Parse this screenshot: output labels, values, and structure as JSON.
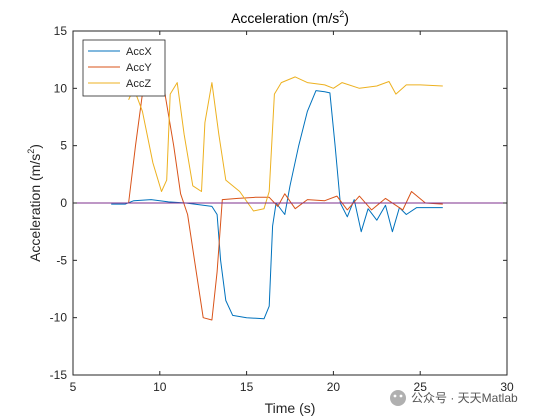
{
  "chart_data": {
    "type": "line",
    "title": "Acceleration (m/s",
    "title_sup": "2",
    "title_close": ")",
    "xlabel": "Time (s)",
    "ylabel": "Acceleration (m/s",
    "ylabel_sup": "2",
    "ylabel_close": ")",
    "xlim": [
      5,
      30
    ],
    "ylim": [
      -15,
      15
    ],
    "xticks": [
      5,
      10,
      15,
      20,
      25,
      30
    ],
    "yticks": [
      -15,
      -10,
      -5,
      0,
      5,
      10,
      15
    ],
    "grid": false,
    "legend_position": "top-left",
    "reference_line": {
      "y": 0,
      "color": "#7E2F8E"
    },
    "series": [
      {
        "name": "AccX",
        "color": "#0072BD",
        "points": [
          [
            7.2,
            -0.1
          ],
          [
            8.0,
            -0.1
          ],
          [
            8.5,
            0.2
          ],
          [
            9.5,
            0.3
          ],
          [
            10.5,
            0.1
          ],
          [
            11.5,
            0.0
          ],
          [
            12.5,
            -0.2
          ],
          [
            13.0,
            -0.3
          ],
          [
            13.3,
            -1.0
          ],
          [
            13.5,
            -5.0
          ],
          [
            13.8,
            -8.5
          ],
          [
            14.2,
            -9.8
          ],
          [
            15.0,
            -10.0
          ],
          [
            16.0,
            -10.1
          ],
          [
            16.3,
            -9.0
          ],
          [
            16.5,
            -2.0
          ],
          [
            16.7,
            0.0
          ],
          [
            17.2,
            -1.0
          ],
          [
            17.5,
            1.5
          ],
          [
            18.0,
            5.0
          ],
          [
            18.5,
            8.0
          ],
          [
            19.0,
            9.8
          ],
          [
            19.5,
            9.7
          ],
          [
            19.8,
            9.6
          ],
          [
            20.1,
            5.0
          ],
          [
            20.4,
            0.0
          ],
          [
            20.8,
            -1.2
          ],
          [
            21.2,
            0.3
          ],
          [
            21.6,
            -2.5
          ],
          [
            22.0,
            -0.5
          ],
          [
            22.5,
            -1.5
          ],
          [
            23.0,
            -0.2
          ],
          [
            23.4,
            -2.5
          ],
          [
            23.8,
            -0.4
          ],
          [
            24.2,
            -1.0
          ],
          [
            24.8,
            -0.4
          ],
          [
            25.5,
            -0.4
          ],
          [
            26.3,
            -0.4
          ]
        ]
      },
      {
        "name": "AccY",
        "color": "#D95319",
        "points": [
          [
            8.2,
            0.0
          ],
          [
            8.6,
            5.0
          ],
          [
            9.0,
            9.5
          ],
          [
            9.5,
            10.3
          ],
          [
            10.0,
            10.2
          ],
          [
            10.3,
            9.5
          ],
          [
            10.8,
            5.0
          ],
          [
            11.2,
            0.8
          ],
          [
            11.6,
            -1.0
          ],
          [
            12.0,
            -5.0
          ],
          [
            12.5,
            -10.0
          ],
          [
            13.0,
            -10.2
          ],
          [
            13.3,
            -6.0
          ],
          [
            13.6,
            0.3
          ],
          [
            14.5,
            0.4
          ],
          [
            15.5,
            0.5
          ],
          [
            16.3,
            0.5
          ],
          [
            16.8,
            -0.3
          ],
          [
            17.2,
            0.8
          ],
          [
            17.8,
            -0.5
          ],
          [
            18.5,
            0.3
          ],
          [
            19.5,
            0.2
          ],
          [
            20.2,
            0.6
          ],
          [
            20.8,
            -0.6
          ],
          [
            21.5,
            0.6
          ],
          [
            22.2,
            -0.6
          ],
          [
            23.0,
            0.4
          ],
          [
            24.0,
            -0.6
          ],
          [
            24.5,
            1.0
          ],
          [
            25.3,
            0.0
          ],
          [
            26.3,
            -0.1
          ]
        ]
      },
      {
        "name": "AccZ",
        "color": "#EDB120",
        "points": [
          [
            8.2,
            9.0
          ],
          [
            8.5,
            10.0
          ],
          [
            9.0,
            8.0
          ],
          [
            9.6,
            3.5
          ],
          [
            10.1,
            1.0
          ],
          [
            10.4,
            2.0
          ],
          [
            10.6,
            9.5
          ],
          [
            11.0,
            10.5
          ],
          [
            11.4,
            6.0
          ],
          [
            11.9,
            1.5
          ],
          [
            12.4,
            1.0
          ],
          [
            12.6,
            7.0
          ],
          [
            13.0,
            10.5
          ],
          [
            13.4,
            6.0
          ],
          [
            13.8,
            2.0
          ],
          [
            14.6,
            1.0
          ],
          [
            15.4,
            -0.7
          ],
          [
            16.0,
            -0.5
          ],
          [
            16.3,
            1.0
          ],
          [
            16.6,
            9.5
          ],
          [
            17.0,
            10.5
          ],
          [
            17.8,
            11.0
          ],
          [
            18.5,
            10.5
          ],
          [
            19.5,
            10.3
          ],
          [
            20.0,
            10.0
          ],
          [
            20.5,
            10.5
          ],
          [
            21.5,
            10.0
          ],
          [
            22.5,
            10.2
          ],
          [
            23.2,
            10.6
          ],
          [
            23.6,
            9.5
          ],
          [
            24.2,
            10.3
          ],
          [
            25.0,
            10.3
          ],
          [
            26.3,
            10.2
          ]
        ]
      }
    ]
  },
  "watermark": {
    "text": "公众号 · 天天Matlab"
  }
}
